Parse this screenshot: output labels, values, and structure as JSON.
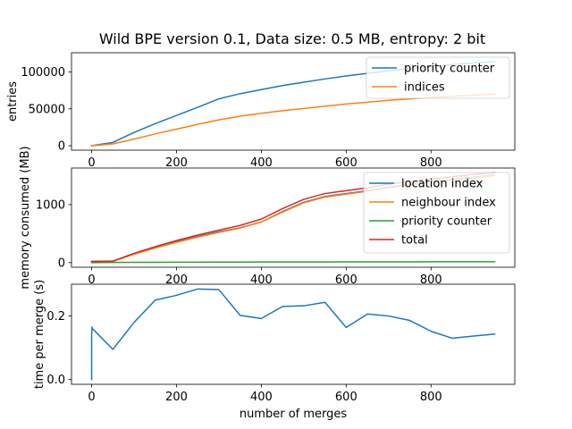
{
  "figure": {
    "title": "Wild BPE version 0.1, Data size: 0.5 MB, entropy: 2 bit"
  },
  "chart_data": [
    {
      "type": "line",
      "xlabel": "",
      "ylabel": "entries",
      "xlim": [
        -47.5,
        997.5
      ],
      "ylim": [
        -6000,
        126000
      ],
      "xticks": [
        0,
        200,
        400,
        600,
        800
      ],
      "xtick_labels": [
        "0",
        "200",
        "400",
        "600",
        "800"
      ],
      "yticks": [
        0,
        50000,
        100000
      ],
      "ytick_labels": [
        "0",
        "50000",
        "100000"
      ],
      "legend": "top-right",
      "series": [
        {
          "name": "priority counter",
          "color": "#1f77b4",
          "x": [
            0,
            50,
            100,
            150,
            200,
            250,
            300,
            350,
            400,
            450,
            500,
            550,
            600,
            650,
            700,
            750,
            800,
            850,
            900,
            950
          ],
          "y": [
            0,
            4500,
            18000,
            30000,
            41000,
            52000,
            63500,
            70500,
            76000,
            81500,
            86000,
            90500,
            94500,
            98000,
            101500,
            104500,
            107500,
            110000,
            112000,
            114000
          ]
        },
        {
          "name": "indices",
          "color": "#ff7f0e",
          "x": [
            0,
            50,
            100,
            150,
            200,
            250,
            300,
            350,
            400,
            450,
            500,
            550,
            600,
            650,
            700,
            750,
            800,
            850,
            900,
            950
          ],
          "y": [
            0,
            2500,
            9000,
            16000,
            22500,
            29000,
            35000,
            40000,
            44000,
            47500,
            50500,
            53500,
            56500,
            59000,
            61500,
            63500,
            65500,
            67000,
            68500,
            70000
          ]
        }
      ]
    },
    {
      "type": "line",
      "xlabel": "",
      "ylabel": "memory consumed (MB)",
      "xlim": [
        -47.5,
        997.5
      ],
      "ylim": [
        -80,
        1630
      ],
      "xticks": [
        0,
        200,
        400,
        600,
        800
      ],
      "xtick_labels": [
        "0",
        "200",
        "400",
        "600",
        "800"
      ],
      "yticks": [
        0,
        1000
      ],
      "ytick_labels": [
        "0",
        "1000"
      ],
      "legend": "top-right",
      "series": [
        {
          "name": "location index",
          "color": "#1f77b4",
          "x": [
            0,
            50,
            100,
            150,
            200,
            250,
            300,
            350,
            400,
            450,
            500,
            550,
            600,
            650,
            700,
            750,
            800,
            850,
            900,
            950
          ],
          "y": [
            20,
            22,
            150,
            260,
            360,
            450,
            530,
            600,
            700,
            880,
            1040,
            1140,
            1190,
            1240,
            1300,
            1350,
            1390,
            1430,
            1470,
            1510
          ]
        },
        {
          "name": "neighbour index",
          "color": "#ff7f0e",
          "x": [
            0,
            50,
            100,
            150,
            200,
            250,
            300,
            350,
            400,
            450,
            500,
            550,
            600,
            650,
            700,
            750,
            800,
            850,
            900,
            950
          ],
          "y": [
            20,
            22,
            145,
            250,
            350,
            440,
            520,
            595,
            700,
            870,
            1030,
            1130,
            1180,
            1230,
            1290,
            1340,
            1380,
            1420,
            1460,
            1500
          ]
        },
        {
          "name": "priority counter",
          "color": "#2ca02c",
          "x": [
            0,
            50,
            100,
            150,
            200,
            250,
            300,
            350,
            400,
            450,
            500,
            550,
            600,
            650,
            700,
            750,
            800,
            850,
            900,
            950
          ],
          "y": [
            0,
            2,
            4,
            5,
            6,
            7,
            8,
            9,
            10,
            10,
            11,
            11,
            12,
            12,
            13,
            13,
            14,
            14,
            15,
            15
          ]
        },
        {
          "name": "total",
          "color": "#d62728",
          "x": [
            0,
            50,
            100,
            150,
            200,
            250,
            300,
            350,
            400,
            450,
            500,
            550,
            600,
            650,
            700,
            750,
            800,
            850,
            900,
            950
          ],
          "y": [
            20,
            25,
            160,
            275,
            380,
            475,
            560,
            640,
            750,
            930,
            1090,
            1190,
            1240,
            1290,
            1350,
            1400,
            1440,
            1480,
            1520,
            1550
          ]
        }
      ]
    },
    {
      "type": "line",
      "xlabel": "number of merges",
      "ylabel": "time per merge (s)",
      "xlim": [
        -47.5,
        997.5
      ],
      "ylim": [
        -0.015,
        0.3
      ],
      "xticks": [
        0,
        200,
        400,
        600,
        800
      ],
      "xtick_labels": [
        "0",
        "200",
        "400",
        "600",
        "800"
      ],
      "yticks": [
        0,
        0.2
      ],
      "ytick_labels": [
        "0.0",
        "0.2"
      ],
      "series": [
        {
          "color": "#1f77b4",
          "x": [
            0,
            0,
            0,
            1,
            2,
            50,
            100,
            150,
            200,
            250,
            300,
            350,
            400,
            450,
            500,
            550,
            600,
            650,
            700,
            750,
            800,
            850,
            900,
            950
          ],
          "y": [
            0.0,
            0.12,
            0.14,
            0.165,
            0.16,
            0.095,
            0.18,
            0.25,
            0.265,
            0.285,
            0.283,
            0.202,
            0.192,
            0.23,
            0.232,
            0.243,
            0.164,
            0.206,
            0.2,
            0.186,
            0.152,
            0.13,
            0.137,
            0.143
          ]
        }
      ]
    }
  ]
}
